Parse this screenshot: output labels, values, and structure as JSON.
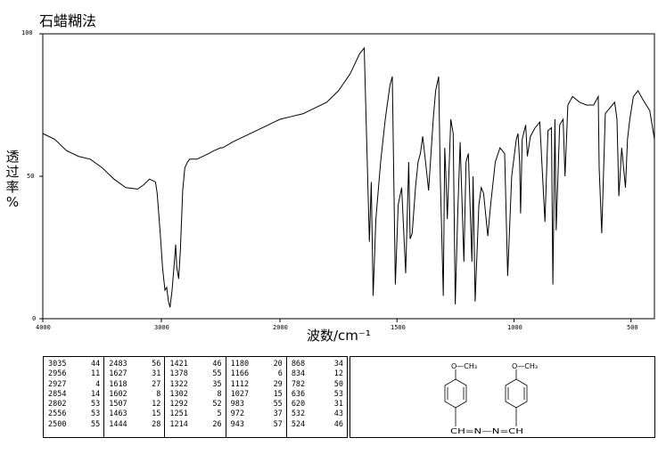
{
  "header": {
    "title": "石蜡糊法"
  },
  "axes": {
    "ylabel_chars": [
      "透",
      "过",
      "率",
      "%"
    ],
    "xlabel": "波数/cm⁻¹",
    "x_ticks": [
      "4000",
      "3000",
      "2000",
      "1500",
      "1000",
      "500"
    ],
    "y_ticks": [
      "100",
      "50",
      "0"
    ]
  },
  "chart_data": {
    "type": "line",
    "title": "石蜡糊法",
    "xlabel": "波数/cm⁻¹",
    "ylabel": "透过率%",
    "x_axis": "IR wavenumber, linear 4000–2000 and 2000–400 segments (compressed above 2000)",
    "xlim": [
      4000,
      400
    ],
    "ylim": [
      0,
      100
    ],
    "series": [
      {
        "x": [
          4000,
          3900,
          3800,
          3700,
          3600,
          3500,
          3400,
          3300,
          3200,
          3150,
          3100,
          3050,
          3035,
          3010,
          2990,
          2970,
          2956,
          2940,
          2927,
          2910,
          2890,
          2880,
          2870,
          2854,
          2840,
          2820,
          2802,
          2780,
          2760,
          2700,
          2650,
          2600,
          2556,
          2500,
          2483,
          2400,
          2300,
          2200,
          2100,
          2050,
          2000,
          1950,
          1900,
          1850,
          1800,
          1750,
          1700,
          1660,
          1640,
          1627,
          1618,
          1610,
          1602,
          1590,
          1570,
          1550,
          1530,
          1520,
          1507,
          1495,
          1480,
          1463,
          1450,
          1444,
          1435,
          1421,
          1410,
          1400,
          1390,
          1378,
          1365,
          1345,
          1335,
          1322,
          1315,
          1302,
          1296,
          1292,
          1285,
          1270,
          1260,
          1251,
          1240,
          1230,
          1214,
          1205,
          1195,
          1180,
          1175,
          1166,
          1150,
          1140,
          1130,
          1112,
          1100,
          1080,
          1060,
          1040,
          1027,
          1010,
          990,
          983,
          976,
          972,
          965,
          950,
          943,
          930,
          910,
          890,
          868,
          855,
          840,
          834,
          825,
          820,
          805,
          790,
          782,
          770,
          750,
          720,
          690,
          660,
          640,
          636,
          625,
          610,
          590,
          570,
          560,
          552,
          540,
          524,
          515,
          505,
          490,
          470,
          450,
          420,
          400
        ],
        "y": [
          65,
          63,
          59,
          57,
          56,
          53,
          49,
          46,
          45.5,
          47,
          49,
          48,
          44,
          30,
          18,
          10,
          11,
          6,
          4,
          10,
          20,
          26,
          18,
          14,
          24,
          45,
          53,
          55,
          56,
          56,
          57,
          58,
          59,
          60,
          60,
          62,
          64,
          66,
          68,
          69,
          70,
          71,
          72,
          74,
          76,
          80,
          86,
          93,
          95,
          55,
          27,
          48,
          8,
          35,
          55,
          70,
          82,
          85,
          12,
          40,
          46,
          16,
          55,
          28,
          30,
          46,
          55,
          58,
          64,
          55,
          45,
          70,
          80,
          85,
          50,
          8,
          60,
          52,
          35,
          70,
          65,
          5,
          38,
          62,
          20,
          55,
          58,
          20,
          50,
          6,
          40,
          46,
          44,
          29,
          40,
          55,
          60,
          58,
          15,
          50,
          63,
          65,
          55,
          37,
          63,
          68,
          57,
          64,
          67,
          69,
          34,
          66,
          67,
          12,
          70,
          31,
          68,
          70,
          50,
          75,
          78,
          76,
          75,
          75,
          78,
          53,
          30,
          72,
          74,
          76,
          70,
          43,
          60,
          46,
          63,
          70,
          78,
          80,
          77,
          73,
          63
        ]
      }
    ],
    "peak_table": [
      [
        3035,
        44
      ],
      [
        2956,
        11
      ],
      [
        2927,
        4
      ],
      [
        2854,
        14
      ],
      [
        2802,
        53
      ],
      [
        2556,
        53
      ],
      [
        2500,
        55
      ],
      [
        2483,
        56
      ],
      [
        1627,
        31
      ],
      [
        1618,
        27
      ],
      [
        1602,
        8
      ],
      [
        1507,
        12
      ],
      [
        1463,
        15
      ],
      [
        1444,
        28
      ],
      [
        1421,
        46
      ],
      [
        1378,
        55
      ],
      [
        1322,
        35
      ],
      [
        1302,
        8
      ],
      [
        1292,
        52
      ],
      [
        1251,
        5
      ],
      [
        1214,
        26
      ],
      [
        1180,
        20
      ],
      [
        1166,
        6
      ],
      [
        1112,
        29
      ],
      [
        1027,
        15
      ],
      [
        983,
        55
      ],
      [
        972,
        37
      ],
      [
        943,
        57
      ],
      [
        868,
        34
      ],
      [
        834,
        12
      ],
      [
        782,
        50
      ],
      [
        636,
        53
      ],
      [
        620,
        31
      ],
      [
        532,
        43
      ],
      [
        524,
        46
      ]
    ]
  },
  "peak_columns": [
    [
      [
        "3035",
        "44"
      ],
      [
        "2956",
        "11"
      ],
      [
        "2927",
        "4"
      ],
      [
        "2854",
        "14"
      ],
      [
        "2802",
        "53"
      ],
      [
        "2556",
        "53"
      ],
      [
        "2500",
        "55"
      ]
    ],
    [
      [
        "2483",
        "56"
      ],
      [
        "1627",
        "31"
      ],
      [
        "1618",
        "27"
      ],
      [
        "1602",
        "8"
      ],
      [
        "1507",
        "12"
      ],
      [
        "1463",
        "15"
      ],
      [
        "1444",
        "28"
      ]
    ],
    [
      [
        "1421",
        "46"
      ],
      [
        "1378",
        "55"
      ],
      [
        "1322",
        "35"
      ],
      [
        "1302",
        "8"
      ],
      [
        "1292",
        "52"
      ],
      [
        "1251",
        "5"
      ],
      [
        "1214",
        "26"
      ]
    ],
    [
      [
        "1180",
        "20"
      ],
      [
        "1166",
        "6"
      ],
      [
        "1112",
        "29"
      ],
      [
        "1027",
        "15"
      ],
      [
        "983",
        "55"
      ],
      [
        "972",
        "37"
      ],
      [
        "943",
        "57"
      ]
    ],
    [
      [
        "868",
        "34"
      ],
      [
        "834",
        "12"
      ],
      [
        "782",
        "50"
      ],
      [
        "636",
        "53"
      ],
      [
        "620",
        "31"
      ],
      [
        "532",
        "43"
      ],
      [
        "524",
        "46"
      ]
    ]
  ],
  "structure": {
    "och3_label": "O—CH₃",
    "linkage_left": "C",
    "linkage_h": "H",
    "linkage_n1": "N",
    "linkage_n2": "N",
    "linkage_right": "CH",
    "linkage_text": "CH=N—N=CH"
  }
}
